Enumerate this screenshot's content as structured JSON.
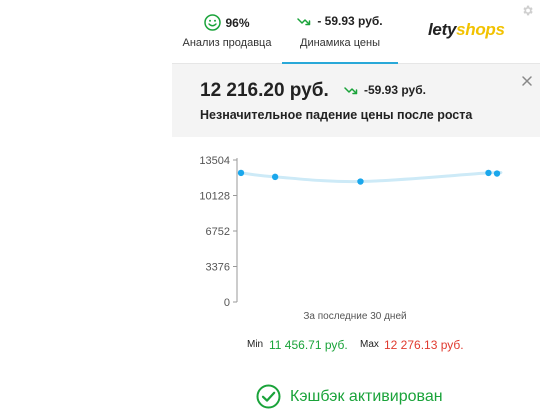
{
  "tabs": {
    "seller": {
      "value": "96%",
      "label": "Анализ продавца"
    },
    "dynamics": {
      "value": "- 59.93 руб.",
      "label": "Динамика цены"
    },
    "logo": {
      "part1": "lety",
      "part2": "shops"
    }
  },
  "price": {
    "current": "12 216.20 руб.",
    "delta": "-59.93 руб.",
    "description": "Незначительное падение цены после роста"
  },
  "chart_data": {
    "type": "line",
    "y_ticks": [
      "13504",
      "10128",
      "6752",
      "3376",
      "0"
    ],
    "ylim": [
      0,
      13504
    ],
    "xlabel": "За последние 30 дней",
    "x": [
      0,
      4,
      14,
      29,
      30
    ],
    "values": [
      12276.13,
      11900,
      11456.71,
      12276.13,
      12216.2
    ],
    "line_color": "#cdeaf7",
    "point_color": "#1aa7ec"
  },
  "stats": {
    "min_label": "Min",
    "min_value": "11 456.71 руб.",
    "max_label": "Max",
    "max_value": "12 276.13 руб."
  },
  "cashback": {
    "text": "Кэшбэк активирован"
  },
  "colors": {
    "accent": "#29a8d8",
    "green": "#1aa33a",
    "red": "#e03a2f",
    "logo_yellow": "#f2c200"
  }
}
